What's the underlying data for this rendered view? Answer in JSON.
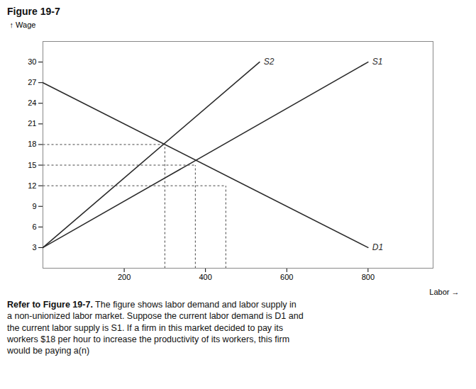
{
  "chart_data": {
    "type": "line",
    "title": "Figure 19-7",
    "xlabel": "Labor",
    "ylabel": "Wage",
    "xlim": [
      0,
      960
    ],
    "ylim": [
      0,
      33
    ],
    "xticks": [
      200,
      400,
      600,
      800
    ],
    "yticks": [
      3,
      6,
      9,
      12,
      15,
      18,
      21,
      24,
      27,
      30
    ],
    "grid": false,
    "series": [
      {
        "name": "D1",
        "color": "#2a2a2a",
        "line_style": "solid",
        "x": [
          0,
          800
        ],
        "values": [
          27,
          3
        ]
      },
      {
        "name": "S1",
        "color": "#2a2a2a",
        "line_style": "solid",
        "x": [
          0,
          800
        ],
        "values": [
          3,
          30
        ]
      },
      {
        "name": "S2",
        "color": "#2a2a2a",
        "line_style": "solid",
        "x": [
          0,
          533
        ],
        "values": [
          3,
          30
        ]
      }
    ],
    "reference_lines": {
      "color": "#444444",
      "line_style": "dashed",
      "points": [
        {
          "x": 300,
          "y": 18
        },
        {
          "x": 375,
          "y": 15
        },
        {
          "x": 450,
          "y": 12
        }
      ]
    },
    "caption": [
      {
        "text": "Refer to Figure 19-7.",
        "bold": true
      },
      {
        "text": " The figure shows labor demand and labor supply in\na non-unionized labor market. Suppose the current labor demand is D1 and\nthe current labor supply is S1. If a firm in this market decided to pay its\nworkers $18 per hour to increase the productivity of its workers, this firm\nwould be paying a(n)",
        "bold": false
      }
    ]
  }
}
